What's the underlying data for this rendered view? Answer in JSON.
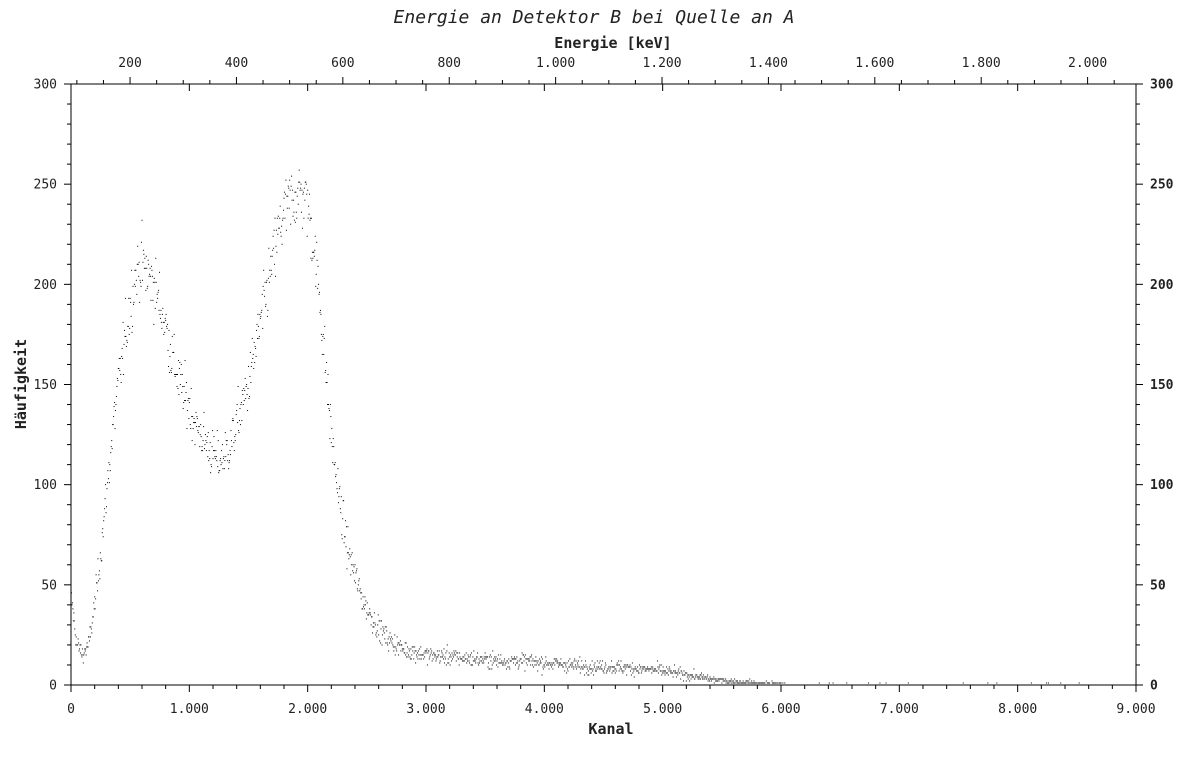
{
  "chart_data": {
    "type": "scatter",
    "title": "Energie an Detektor B bei Quelle an A",
    "xlabel": "Kanal",
    "ylabel": "Häufigkeit",
    "x2label": "Energie [keV]",
    "xlim": [
      0,
      9000
    ],
    "ylim": [
      0,
      300
    ],
    "x2lim": [
      89,
      2091
    ],
    "xticks": [
      0,
      1000,
      2000,
      3000,
      4000,
      5000,
      6000,
      7000,
      8000,
      9000
    ],
    "xtick_labels": [
      "0",
      "1.000",
      "2.000",
      "3.000",
      "4.000",
      "5.000",
      "6.000",
      "7.000",
      "8.000",
      "9.000"
    ],
    "x2ticks": [
      200,
      400,
      600,
      800,
      1000,
      1200,
      1400,
      1600,
      1800,
      2000
    ],
    "x2tick_labels": [
      "200",
      "400",
      "600",
      "800",
      "1.000",
      "1.200",
      "1.400",
      "1.600",
      "1.800",
      "2.000"
    ],
    "yticks": [
      0,
      50,
      100,
      150,
      200,
      250,
      300
    ],
    "ytick_labels": [
      "0",
      "50",
      "100",
      "150",
      "200",
      "250",
      "300"
    ],
    "grid": false,
    "marker_color": "#000000",
    "series": [
      {
        "x": [
          0,
          50,
          100,
          150,
          200,
          250,
          300,
          350,
          400,
          450,
          500,
          550,
          600,
          650,
          700,
          750,
          800,
          850,
          900,
          950,
          1000,
          1050,
          1100,
          1150,
          1200,
          1250,
          1300,
          1350,
          1400,
          1450,
          1500,
          1550,
          1600,
          1650,
          1700,
          1750,
          1800,
          1850,
          1900,
          1950,
          2000,
          2050,
          2100,
          2150,
          2200,
          2250,
          2300,
          2350,
          2400,
          2450,
          2500,
          2600,
          2700,
          2800,
          3000,
          3200,
          3400,
          3600,
          3800,
          4000,
          4200,
          4400,
          4600,
          4800,
          5000,
          5200,
          5400,
          5600,
          5800,
          6000,
          6500,
          7000,
          7500,
          8000,
          8500,
          8800
        ],
        "y": [
          45,
          20,
          15,
          20,
          40,
          65,
          95,
          125,
          150,
          170,
          190,
          205,
          210,
          205,
          200,
          190,
          180,
          165,
          155,
          145,
          140,
          130,
          125,
          120,
          115,
          112,
          115,
          120,
          130,
          140,
          150,
          165,
          180,
          195,
          210,
          225,
          235,
          240,
          245,
          245,
          240,
          220,
          195,
          160,
          125,
          100,
          80,
          65,
          55,
          45,
          38,
          28,
          22,
          18,
          15,
          14,
          13,
          12,
          12,
          11,
          10,
          9,
          9,
          8,
          7,
          5,
          3,
          1.5,
          1,
          0.5,
          0.4,
          0.3,
          0.3,
          0.2,
          0.2,
          0.1
        ]
      }
    ]
  }
}
